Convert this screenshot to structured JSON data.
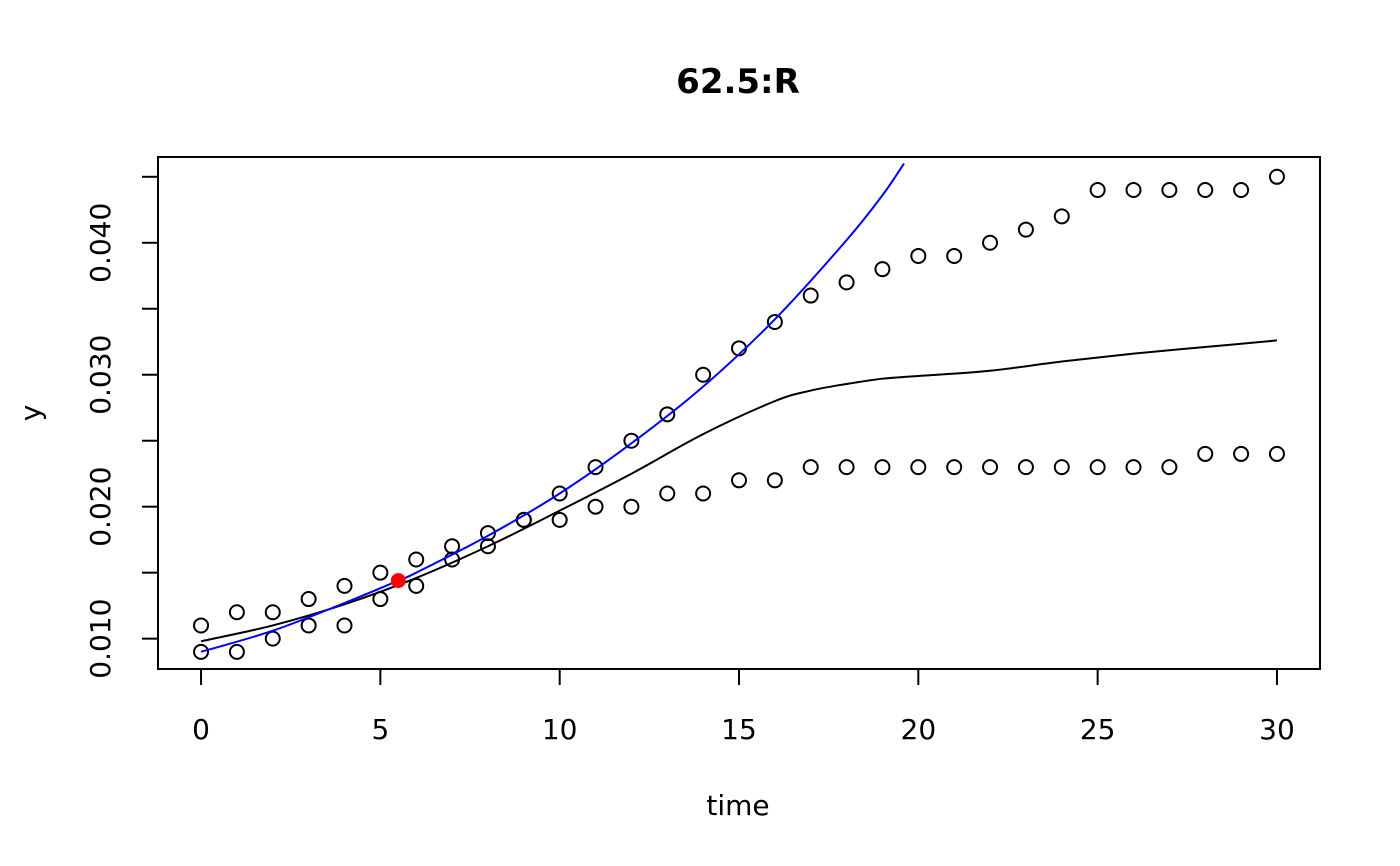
{
  "chart_data": {
    "type": "scatter",
    "title": "62.5:R",
    "xlabel": "time",
    "ylabel": "y",
    "xlim": [
      -1.2,
      31.2
    ],
    "ylim": [
      0.0077,
      0.0465
    ],
    "x_ticks": [
      0,
      5,
      10,
      15,
      20,
      25,
      30
    ],
    "x_tick_labels": [
      "0",
      "5",
      "10",
      "15",
      "20",
      "25",
      "30"
    ],
    "y_ticks": [
      0.01,
      0.015,
      0.02,
      0.025,
      0.03,
      0.035,
      0.04,
      0.045
    ],
    "y_tick_labels": [
      "0.010",
      "",
      "0.020",
      "",
      "0.030",
      "",
      "0.040",
      ""
    ],
    "grid": false,
    "legend": "none",
    "series": [
      {
        "kind": "points",
        "marker": "open-circle",
        "color": "#000000",
        "x": [
          0,
          1,
          2,
          3,
          4,
          5,
          6,
          7,
          8,
          9,
          10,
          11,
          12,
          13,
          14,
          15,
          16,
          17,
          18,
          19,
          20,
          21,
          22,
          23,
          24,
          25,
          26,
          27,
          28,
          29,
          30
        ],
        "y": [
          0.011,
          0.012,
          0.012,
          0.013,
          0.014,
          0.015,
          0.016,
          0.017,
          0.018,
          0.019,
          0.021,
          0.023,
          0.025,
          0.027,
          0.03,
          0.032,
          0.034,
          0.036,
          0.037,
          0.038,
          0.039,
          0.039,
          0.04,
          0.041,
          0.042,
          0.044,
          0.044,
          0.044,
          0.044,
          0.044,
          0.045
        ]
      },
      {
        "kind": "points",
        "marker": "open-circle",
        "color": "#000000",
        "x": [
          0,
          1,
          2,
          3,
          4,
          5,
          6,
          7,
          8,
          9,
          10,
          11,
          12,
          13,
          14,
          15,
          16,
          17,
          18,
          19,
          20,
          21,
          22,
          23,
          24,
          25,
          26,
          27,
          28,
          29,
          30
        ],
        "y": [
          0.009,
          0.009,
          0.01,
          0.011,
          0.011,
          0.013,
          0.014,
          0.016,
          0.017,
          0.019,
          0.019,
          0.02,
          0.02,
          0.021,
          0.021,
          0.022,
          0.022,
          0.023,
          0.023,
          0.023,
          0.023,
          0.023,
          0.023,
          0.023,
          0.023,
          0.023,
          0.023,
          0.023,
          0.024,
          0.024,
          0.024
        ]
      },
      {
        "kind": "line",
        "color": "#000000",
        "x": [
          0,
          2,
          4,
          6,
          8,
          10,
          12,
          14,
          16,
          17,
          18,
          19,
          20,
          22,
          24,
          26,
          28,
          30
        ],
        "y": [
          0.0098,
          0.011,
          0.0126,
          0.0146,
          0.017,
          0.0197,
          0.0225,
          0.0255,
          0.028,
          0.0288,
          0.0293,
          0.0297,
          0.0299,
          0.0303,
          0.031,
          0.0316,
          0.0321,
          0.0326
        ]
      },
      {
        "kind": "line",
        "color": "#0000ff",
        "x": [
          0,
          2,
          4,
          5.5,
          6,
          8,
          10,
          12,
          14,
          16,
          18,
          19,
          19.6
        ],
        "y": [
          0.009,
          0.0106,
          0.0127,
          0.0144,
          0.015,
          0.0178,
          0.021,
          0.0248,
          0.0291,
          0.0342,
          0.0402,
          0.0436,
          0.046
        ]
      },
      {
        "kind": "highlight-point",
        "marker": "filled-circle",
        "color": "#ff0000",
        "x": [
          5.5
        ],
        "y": [
          0.0144
        ]
      }
    ]
  }
}
